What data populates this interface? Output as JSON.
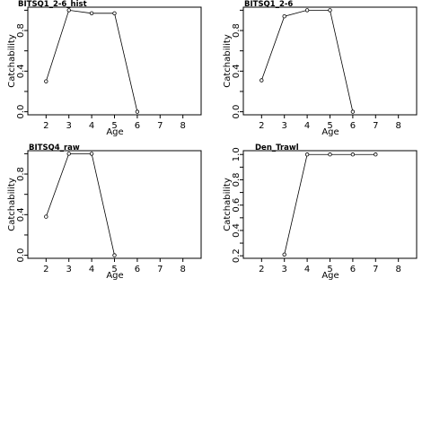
{
  "chart_data": [
    {
      "type": "line",
      "title": "BITSQ1_2-6_hist",
      "xlabel": "Age",
      "ylabel": "Catchability",
      "xlim": [
        1.2,
        8.8
      ],
      "ylim": [
        -0.03,
        1.03
      ],
      "xticks": [
        "2",
        "3",
        "4",
        "5",
        "6",
        "7",
        "8"
      ],
      "yticks": [
        "0.0",
        "0.4",
        "0.8"
      ],
      "x": [
        2,
        3,
        4,
        5,
        6
      ],
      "values": [
        0.3,
        1.0,
        0.97,
        0.97,
        0.0
      ]
    },
    {
      "type": "line",
      "title": "BITSQ1_2-6",
      "xlabel": "Age",
      "ylabel": "Catchability",
      "xlim": [
        1.2,
        8.8
      ],
      "ylim": [
        -0.03,
        1.03
      ],
      "xticks": [
        "2",
        "3",
        "4",
        "5",
        "6",
        "7",
        "8"
      ],
      "yticks": [
        "0.0",
        "0.4",
        "0.8"
      ],
      "x": [
        2,
        3,
        4,
        5,
        6
      ],
      "values": [
        0.31,
        0.94,
        1.0,
        1.0,
        0.0
      ]
    },
    {
      "type": "line",
      "title": "BITSQ4_raw",
      "xlabel": "Age",
      "ylabel": "Catchability",
      "xlim": [
        1.2,
        8.8
      ],
      "ylim": [
        -0.03,
        1.03
      ],
      "xticks": [
        "2",
        "3",
        "4",
        "5",
        "6",
        "7",
        "8"
      ],
      "yticks": [
        "0.0",
        "0.4",
        "0.8"
      ],
      "x": [
        2,
        3,
        4,
        5
      ],
      "values": [
        0.38,
        1.0,
        1.0,
        0.0
      ]
    },
    {
      "type": "line",
      "title": "Den_Trawl",
      "xlabel": "Age",
      "ylabel": "Catchability",
      "xlim": [
        1.2,
        8.8
      ],
      "ylim": [
        0.18,
        1.03
      ],
      "xticks": [
        "2",
        "3",
        "4",
        "5",
        "6",
        "7",
        "8"
      ],
      "yticks": [
        "0.2",
        "0.4",
        "0.6",
        "0.8",
        "1.0"
      ],
      "x": [
        3,
        4,
        5,
        6,
        7
      ],
      "values": [
        0.21,
        1.0,
        1.0,
        1.0,
        1.0
      ]
    }
  ]
}
